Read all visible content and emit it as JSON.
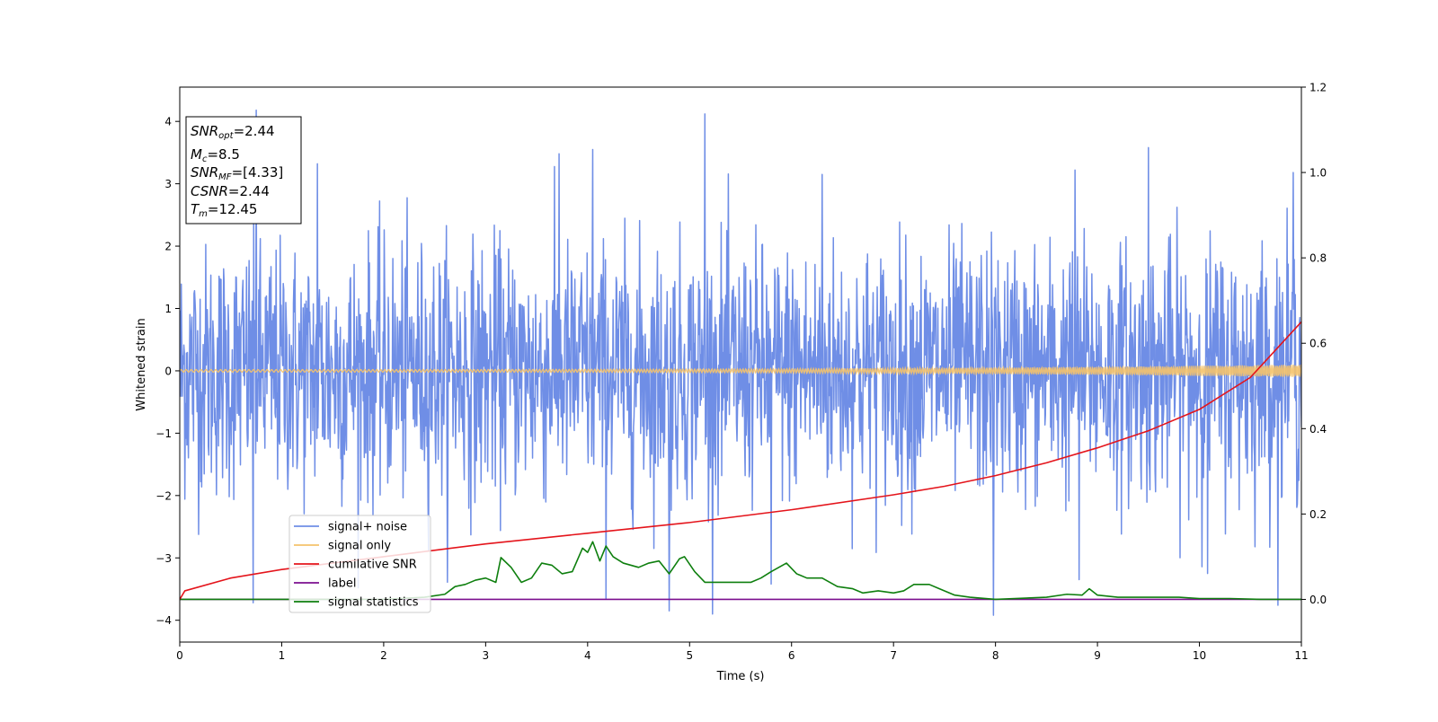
{
  "chart_data": {
    "type": "line",
    "xlabel": "Time (s)",
    "ylabel": "Whitened strain",
    "xlim": [
      0,
      11
    ],
    "ylim_left": [
      -4.35,
      4.55
    ],
    "ylim_right": [
      -0.1,
      1.2
    ],
    "x_ticks": [
      0,
      1,
      2,
      3,
      4,
      5,
      6,
      7,
      8,
      9,
      10,
      11
    ],
    "y_ticks_left": [
      -4,
      -3,
      -2,
      -1,
      0,
      1,
      2,
      3,
      4
    ],
    "y_ticks_right": [
      0.0,
      0.2,
      0.4,
      0.6,
      0.8,
      1.0,
      1.2
    ],
    "grid": false,
    "legend_position": "lower-left",
    "annotation": {
      "lines": [
        {
          "base": "SNR",
          "sub": "opt",
          "rest": "=2.44"
        },
        {
          "base": "M",
          "sub": "c",
          "rest": "=8.5"
        },
        {
          "base": "SNR",
          "sub": "MF",
          "rest": "=[4.33]"
        },
        {
          "base": "CSNR",
          "sub": "",
          "rest": "=2.44"
        },
        {
          "base": "T",
          "sub": "m",
          "rest": "=12.45"
        }
      ]
    },
    "series": [
      {
        "name": "signal+ noise",
        "color": "#6f8ee6",
        "axis": "left",
        "description_values": {
          "sample_rate": 200,
          "std": 1.0,
          "clip": [
            -3.9,
            4.15
          ]
        },
        "peaks": [
          [
            0.75,
            4.18
          ],
          [
            5.15,
            4.12
          ],
          [
            9.5,
            3.58
          ],
          [
            4.05,
            3.55
          ],
          [
            3.72,
            3.48
          ],
          [
            1.35,
            3.32
          ],
          [
            8.78,
            3.22
          ],
          [
            10.92,
            3.18
          ],
          [
            6.3,
            3.15
          ]
        ],
        "troughs": [
          [
            7.98,
            -3.92
          ],
          [
            4.8,
            -3.85
          ],
          [
            0.72,
            -3.72
          ],
          [
            4.18,
            -3.65
          ],
          [
            5.8,
            -3.42
          ],
          [
            8.82,
            -3.35
          ],
          [
            10.08,
            -3.25
          ]
        ]
      },
      {
        "name": "signal only",
        "color": "#f5c36b",
        "axis": "left",
        "amplitude_start": 0.02,
        "amplitude_end": 0.1
      },
      {
        "name": "cumilative SNR",
        "color": "#e4141b",
        "axis": "right",
        "x": [
          0,
          0.05,
          0.5,
          1,
          2,
          3,
          4,
          5,
          6,
          7,
          7.5,
          8,
          8.5,
          9,
          9.5,
          10,
          10.5,
          11
        ],
        "y": [
          0.0,
          0.02,
          0.05,
          0.07,
          0.1,
          0.13,
          0.155,
          0.18,
          0.21,
          0.245,
          0.265,
          0.29,
          0.32,
          0.355,
          0.395,
          0.445,
          0.52,
          0.65
        ]
      },
      {
        "name": "label",
        "color": "#7b0f8f",
        "axis": "right",
        "x": [
          0,
          11
        ],
        "y": [
          0,
          0
        ]
      },
      {
        "name": "signal statistics",
        "color": "#0e7f0e",
        "axis": "right",
        "x": [
          0,
          1,
          2,
          2.4,
          2.6,
          2.7,
          2.8,
          2.9,
          3.0,
          3.1,
          3.15,
          3.25,
          3.35,
          3.45,
          3.55,
          3.65,
          3.75,
          3.85,
          3.95,
          4.0,
          4.05,
          4.12,
          4.18,
          4.25,
          4.35,
          4.5,
          4.6,
          4.7,
          4.8,
          4.9,
          4.95,
          5.05,
          5.15,
          5.25,
          5.4,
          5.6,
          5.7,
          5.8,
          5.95,
          6.05,
          6.15,
          6.3,
          6.45,
          6.6,
          6.7,
          6.85,
          7.0,
          7.1,
          7.2,
          7.35,
          7.45,
          7.6,
          7.75,
          8.0,
          8.5,
          8.7,
          8.85,
          8.92,
          9.0,
          9.2,
          9.4,
          9.8,
          10.0,
          10.3,
          10.6,
          11.0
        ],
        "y": [
          0.0,
          0.0,
          0.0,
          0.005,
          0.012,
          0.03,
          0.035,
          0.045,
          0.05,
          0.04,
          0.098,
          0.075,
          0.04,
          0.05,
          0.085,
          0.08,
          0.06,
          0.065,
          0.12,
          0.11,
          0.135,
          0.09,
          0.125,
          0.1,
          0.085,
          0.075,
          0.085,
          0.09,
          0.06,
          0.095,
          0.1,
          0.065,
          0.04,
          0.04,
          0.04,
          0.04,
          0.05,
          0.065,
          0.085,
          0.06,
          0.05,
          0.05,
          0.03,
          0.025,
          0.015,
          0.02,
          0.015,
          0.02,
          0.035,
          0.035,
          0.025,
          0.01,
          0.005,
          0.0,
          0.005,
          0.012,
          0.01,
          0.025,
          0.01,
          0.005,
          0.005,
          0.005,
          0.002,
          0.002,
          0.0,
          0.0
        ]
      }
    ]
  }
}
